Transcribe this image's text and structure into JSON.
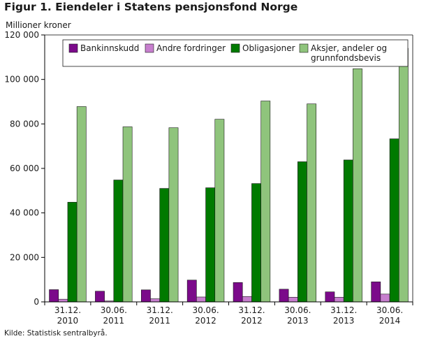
{
  "title": "Figur 1. Eiendeler i Statens pensjonsfond Norge",
  "source": "Kilde: Statistisk sentralbyrå.",
  "chart_data": {
    "type": "bar",
    "ylabel": "Millioner kroner",
    "ylim": [
      0,
      120000
    ],
    "yticks": [
      0,
      20000,
      40000,
      60000,
      80000,
      100000,
      120000
    ],
    "ytick_labels": [
      "0",
      "20 000",
      "40 000",
      "60 000",
      "80 000",
      "100 000",
      "120 000"
    ],
    "grid": false,
    "legend_position": "top-right",
    "categories": [
      [
        "31.12.",
        "2010"
      ],
      [
        "30.06.",
        "2011"
      ],
      [
        "31.12.",
        "2011"
      ],
      [
        "30.06.",
        "2012"
      ],
      [
        "31.12.",
        "2012"
      ],
      [
        "30.06.",
        "2013"
      ],
      [
        "31.12.",
        "2013"
      ],
      [
        "30.06.",
        "2014"
      ]
    ],
    "series": [
      {
        "name": "Bankinnskudd",
        "color": "#7b0a8a",
        "values": [
          5500,
          4800,
          5400,
          9800,
          8700,
          5700,
          4500,
          9000
        ]
      },
      {
        "name": "Andre fordringer",
        "color": "#c77fce",
        "values": [
          1200,
          400,
          1400,
          2200,
          2400,
          2100,
          2100,
          3500
        ]
      },
      {
        "name": "Obligasjoner",
        "color": "#007a00",
        "values": [
          44800,
          54800,
          51000,
          51300,
          53200,
          63000,
          63800,
          73300
        ]
      },
      {
        "name": "Aksjer, andeler og grunnfondsbevis",
        "name_lines": [
          "Aksjer, andeler og",
          "grunnfondsbevis"
        ],
        "color": "#8fc47c",
        "values": [
          87800,
          78700,
          78300,
          82100,
          90300,
          89000,
          104800,
          114000
        ]
      }
    ]
  }
}
